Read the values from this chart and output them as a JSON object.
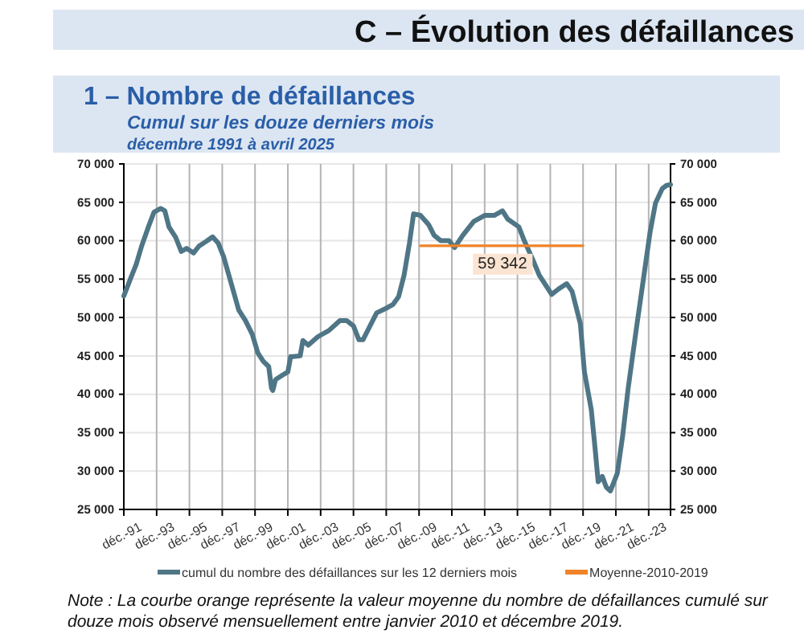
{
  "chart_data": {
    "type": "line",
    "title": "1 – Nombre de défaillances",
    "subtitle": "Cumul sur les douze derniers mois",
    "annotations": [
      "C – Évolution des défaillances",
      "décembre 1991 à avril 2025",
      "Note : La courbe orange représente la valeur moyenne du nombre de défaillances cumulé sur douze mois observé mensuellement entre janvier 2010 et décembre 2019.",
      {
        "text": "59 342",
        "x": "2015-01",
        "y": 59342
      }
    ],
    "xlim": [
      "1991-12",
      "2025-04"
    ],
    "xticks": [
      {
        "value": "1991-12",
        "label": "déc.-91"
      },
      {
        "value": "1993-12",
        "label": "déc.-93"
      },
      {
        "value": "1995-12",
        "label": "déc.-95"
      },
      {
        "value": "1997-12",
        "label": "déc.-97"
      },
      {
        "value": "1999-12",
        "label": "déc.-99"
      },
      {
        "value": "2001-12",
        "label": "déc.-01"
      },
      {
        "value": "2003-12",
        "label": "déc.-03"
      },
      {
        "value": "2005-12",
        "label": "déc.-05"
      },
      {
        "value": "2007-12",
        "label": "déc.-07"
      },
      {
        "value": "2009-12",
        "label": "déc.-09"
      },
      {
        "value": "2011-12",
        "label": "déc.-11"
      },
      {
        "value": "2013-12",
        "label": "déc.-13"
      },
      {
        "value": "2015-12",
        "label": "déc.-15"
      },
      {
        "value": "2017-12",
        "label": "déc.-17"
      },
      {
        "value": "2019-12",
        "label": "déc.-19"
      },
      {
        "value": "2021-12",
        "label": "déc.-21"
      },
      {
        "value": "2023-12",
        "label": "déc.-23"
      }
    ],
    "ylim": [
      25000,
      70000
    ],
    "yticks": [
      {
        "value": 25000,
        "label": "25 000"
      },
      {
        "value": 30000,
        "label": "30 000"
      },
      {
        "value": 35000,
        "label": "35 000"
      },
      {
        "value": 40000,
        "label": "40 000"
      },
      {
        "value": 45000,
        "label": "45 000"
      },
      {
        "value": 50000,
        "label": "50 000"
      },
      {
        "value": 55000,
        "label": "55 000"
      },
      {
        "value": 60000,
        "label": "60 000"
      },
      {
        "value": 65000,
        "label": "65 000"
      },
      {
        "value": 70000,
        "label": "70 000"
      }
    ],
    "y2lim": [
      25000,
      70000
    ],
    "y2ticks": [
      {
        "value": 25000,
        "label": "25 000"
      },
      {
        "value": 30000,
        "label": "30 000"
      },
      {
        "value": 35000,
        "label": "35 000"
      },
      {
        "value": 40000,
        "label": "40 000"
      },
      {
        "value": 45000,
        "label": "45 000"
      },
      {
        "value": 50000,
        "label": "50 000"
      },
      {
        "value": 55000,
        "label": "55 000"
      },
      {
        "value": 60000,
        "label": "60 000"
      },
      {
        "value": 65000,
        "label": "65 000"
      },
      {
        "value": 70000,
        "label": "70 000"
      }
    ],
    "grid": true,
    "legend": "bottom",
    "line_style": "solid",
    "series": [
      {
        "name": "cumul du nombre des défaillances sur les 12 derniers mois",
        "color": "#4f7686",
        "x": [
          "1991-12",
          "1992-05",
          "1992-09",
          "1993-01",
          "1993-06",
          "1993-10",
          "1994-03",
          "1994-06",
          "1994-09",
          "1995-02",
          "1995-06",
          "1995-10",
          "1996-03",
          "1996-07",
          "1997-01",
          "1997-05",
          "1997-09",
          "1998-01",
          "1998-06",
          "1998-12",
          "1999-05",
          "1999-10",
          "2000-02",
          "2000-06",
          "2000-10",
          "2000-12",
          "2001-01",
          "2001-03",
          "2001-09",
          "2001-12",
          "2002-02",
          "2002-04",
          "2002-09",
          "2002-11",
          "2003-03",
          "2003-10",
          "2004-06",
          "2005-02",
          "2005-07",
          "2005-12",
          "2006-04",
          "2006-07",
          "2006-11",
          "2007-05",
          "2008-01",
          "2008-05",
          "2008-09",
          "2009-01",
          "2009-05",
          "2009-08",
          "2010-01",
          "2010-07",
          "2010-11",
          "2011-04",
          "2011-10",
          "2012-02",
          "2012-08",
          "2013-04",
          "2013-12",
          "2014-07",
          "2015-01",
          "2015-05",
          "2016-01",
          "2016-05",
          "2016-11",
          "2017-04",
          "2018-01",
          "2018-06",
          "2018-12",
          "2019-04",
          "2019-10",
          "2020-01",
          "2020-06",
          "2020-09",
          "2020-11",
          "2021-02",
          "2021-05",
          "2021-08",
          "2022-01",
          "2022-05",
          "2022-09",
          "2023-03",
          "2023-08",
          "2024-01",
          "2024-05",
          "2024-10",
          "2025-01",
          "2025-04"
        ],
        "values": [
          52800,
          55100,
          56900,
          59300,
          61800,
          63700,
          64200,
          63900,
          61800,
          60400,
          58600,
          59000,
          58400,
          59300,
          60000,
          60500,
          59700,
          57900,
          54800,
          51000,
          49600,
          47800,
          45400,
          44300,
          43600,
          40800,
          40500,
          41900,
          42600,
          42900,
          44900,
          44900,
          45000,
          47000,
          46400,
          47500,
          48300,
          49600,
          49600,
          48900,
          47100,
          47100,
          48500,
          50600,
          51300,
          51700,
          52700,
          55500,
          59700,
          63500,
          63300,
          62100,
          60700,
          60000,
          60000,
          59100,
          60700,
          62500,
          63300,
          63300,
          63900,
          62800,
          61800,
          60000,
          57600,
          55500,
          53000,
          53700,
          54400,
          53400,
          49200,
          42900,
          38000,
          32500,
          28600,
          29300,
          27900,
          27400,
          29700,
          34600,
          40800,
          48500,
          54800,
          61100,
          64900,
          66800,
          67200,
          67300
        ]
      },
      {
        "name": "Moyenne-2010-2019",
        "color": "#f08228",
        "x": [
          "2010-01",
          "2019-12"
        ],
        "values": [
          59342,
          59342
        ]
      }
    ]
  }
}
